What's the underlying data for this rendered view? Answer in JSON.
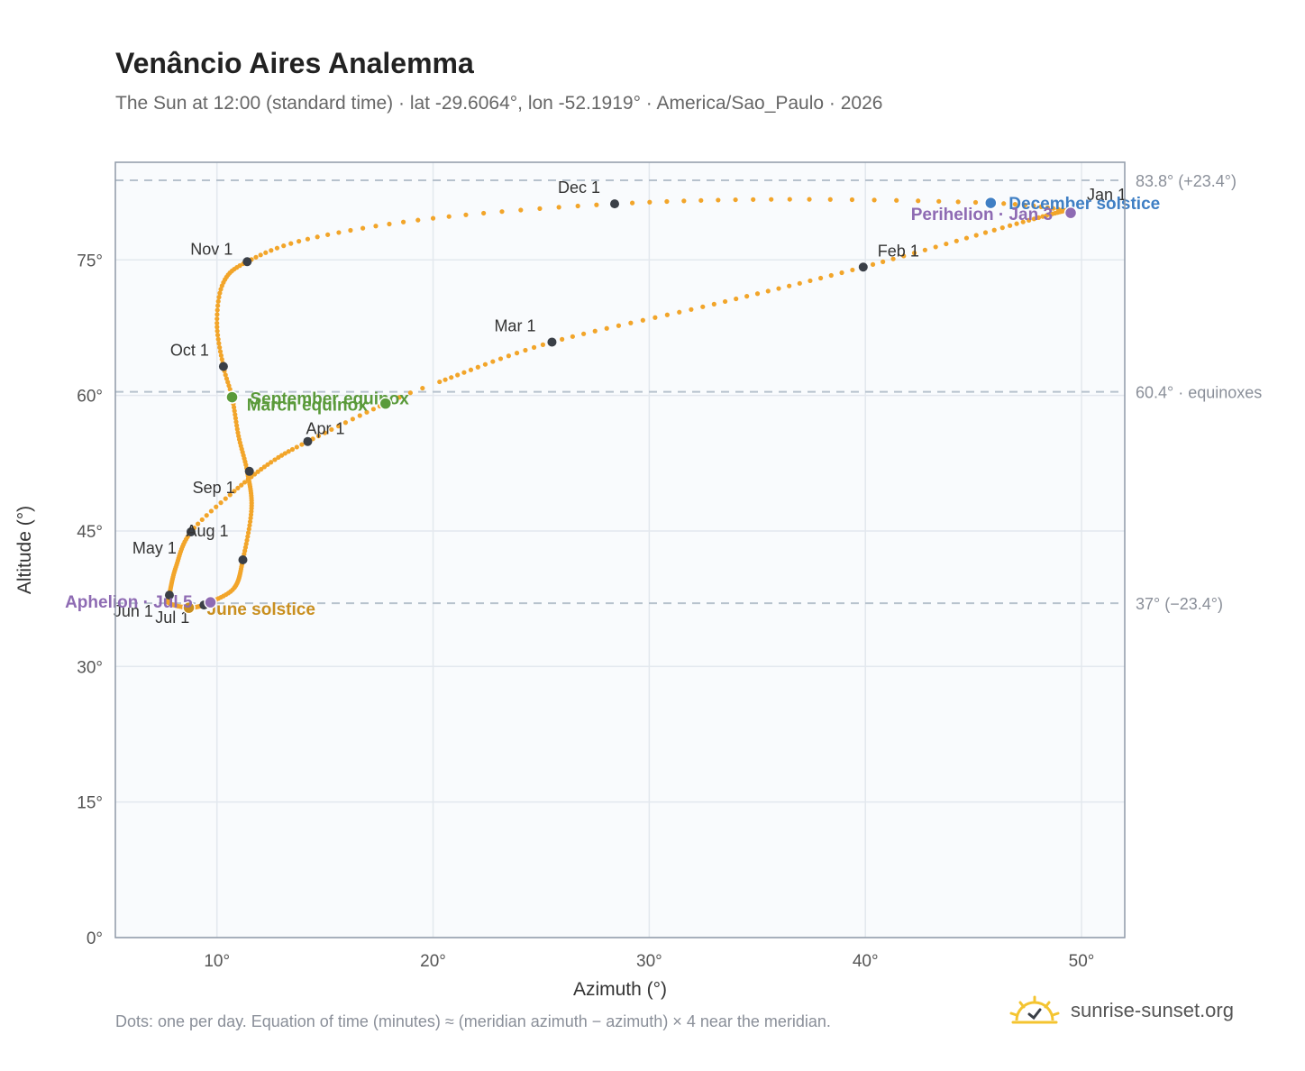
{
  "header": {
    "title": "Venâncio Aires Analemma",
    "subtitle": "The Sun at 12:00 (standard time) · lat -29.6064°, lon -52.1919° · America/Sao_Paulo · 2026"
  },
  "footer": {
    "note": "Dots: one per day. Equation of time (minutes) ≈ (meridian azimuth − azimuth) × 4 near the meridian.",
    "brand": "sunrise-sunset.org"
  },
  "colors": {
    "curve": "#f2a52a",
    "month_marker": "#3a3f47",
    "equinox": "#5a9a3a",
    "june_solstice": "#c98f1f",
    "december_solstice": "#3f7fc4",
    "apsis": "#8e6bb3",
    "plot_bg": "#f9fbfd",
    "grid": "#e3e8ee",
    "reference": "#b7c2cd"
  },
  "chart_data": {
    "type": "scatter",
    "xlabel": "Azimuth (°)",
    "ylabel": "Altitude (°)",
    "xlim": [
      5.3,
      52
    ],
    "ylim": [
      0,
      85.8
    ],
    "x_ticks": [
      10,
      20,
      30,
      40,
      50
    ],
    "x_tick_labels": [
      "10°",
      "20°",
      "30°",
      "40°",
      "50°"
    ],
    "y_ticks": [
      0,
      15,
      30,
      45,
      60,
      75
    ],
    "y_tick_labels": [
      "0°",
      "15°",
      "30°",
      "45°",
      "60°",
      "75°"
    ],
    "grid": true,
    "reference_lines": [
      {
        "y": 83.8,
        "label": "83.8° (+23.4°)"
      },
      {
        "y": 60.4,
        "label": "60.4° · equinoxes"
      },
      {
        "y": 37.0,
        "label": "37° (−23.4°)"
      }
    ],
    "analemma": [
      {
        "day": 1,
        "x": 49.3,
        "y": 80.5
      },
      {
        "day": 16,
        "x": 47.0,
        "y": 79.0
      },
      {
        "day": 32,
        "x": 39.9,
        "y": 74.2
      },
      {
        "day": 46,
        "x": 33.0,
        "y": 70.1
      },
      {
        "day": 60,
        "x": 25.5,
        "y": 65.9
      },
      {
        "day": 75,
        "x": 20.3,
        "y": 61.5
      },
      {
        "day": 79,
        "x": 17.8,
        "y": 59.1
      },
      {
        "day": 91,
        "x": 14.2,
        "y": 54.9
      },
      {
        "day": 100,
        "x": 12.5,
        "y": 52.6
      },
      {
        "day": 111,
        "x": 10.8,
        "y": 49.4
      },
      {
        "day": 121,
        "x": 8.8,
        "y": 44.9
      },
      {
        "day": 136,
        "x": 8.1,
        "y": 41.0
      },
      {
        "day": 152,
        "x": 7.8,
        "y": 37.9
      },
      {
        "day": 160,
        "x": 7.8,
        "y": 37.0
      },
      {
        "day": 172,
        "x": 8.7,
        "y": 36.5
      },
      {
        "day": 182,
        "x": 9.4,
        "y": 36.8
      },
      {
        "day": 186,
        "x": 9.7,
        "y": 37.1
      },
      {
        "day": 197,
        "x": 10.8,
        "y": 38.7
      },
      {
        "day": 213,
        "x": 11.2,
        "y": 41.8
      },
      {
        "day": 228,
        "x": 11.6,
        "y": 47.5
      },
      {
        "day": 244,
        "x": 11.4,
        "y": 51.6
      },
      {
        "day": 255,
        "x": 11.0,
        "y": 55.5
      },
      {
        "day": 266,
        "x": 10.7,
        "y": 59.8
      },
      {
        "day": 274,
        "x": 10.3,
        "y": 63.2
      },
      {
        "day": 285,
        "x": 10.0,
        "y": 68.0
      },
      {
        "day": 295,
        "x": 10.3,
        "y": 72.5
      },
      {
        "day": 305,
        "x": 11.4,
        "y": 74.8
      },
      {
        "day": 315,
        "x": 14.2,
        "y": 77.3
      },
      {
        "day": 325,
        "x": 20.0,
        "y": 79.6
      },
      {
        "day": 335,
        "x": 28.4,
        "y": 81.2
      },
      {
        "day": 345,
        "x": 36.5,
        "y": 81.7
      },
      {
        "day": 355,
        "x": 45.8,
        "y": 81.3
      },
      {
        "day": 365,
        "x": 49.3,
        "y": 80.5
      }
    ],
    "month_markers": [
      {
        "label": "Jan 1",
        "x": 49.5,
        "y": 80.2
      },
      {
        "label": "Feb 1",
        "x": 39.9,
        "y": 74.2
      },
      {
        "label": "Mar 1",
        "x": 25.5,
        "y": 65.9
      },
      {
        "label": "Apr 1",
        "x": 14.2,
        "y": 54.9
      },
      {
        "label": "May 1",
        "x": 8.8,
        "y": 44.9
      },
      {
        "label": "Jun 1",
        "x": 7.8,
        "y": 37.9
      },
      {
        "label": "Jul 1",
        "x": 9.4,
        "y": 36.8
      },
      {
        "label": "Aug 1",
        "x": 11.2,
        "y": 41.8
      },
      {
        "label": "Sep 1",
        "x": 11.5,
        "y": 51.6
      },
      {
        "label": "Oct 1",
        "x": 10.3,
        "y": 63.2
      },
      {
        "label": "Nov 1",
        "x": 11.4,
        "y": 74.8
      },
      {
        "label": "Dec 1",
        "x": 28.4,
        "y": 81.2
      }
    ],
    "events": [
      {
        "label": "December solstice",
        "x": 45.8,
        "y": 81.3,
        "kind": "december_solstice"
      },
      {
        "label": "Perihelion · Jan 3",
        "x": 49.5,
        "y": 80.2,
        "kind": "apsis"
      },
      {
        "label": "September equinox",
        "x": 10.7,
        "y": 59.8,
        "kind": "equinox"
      },
      {
        "label": "March equinox",
        "x": 17.8,
        "y": 59.1,
        "kind": "equinox"
      },
      {
        "label": "June solstice",
        "x": 8.7,
        "y": 36.5,
        "kind": "june_solstice"
      },
      {
        "label": "Aphelion · Jul 5",
        "x": 9.7,
        "y": 37.1,
        "kind": "apsis"
      }
    ]
  }
}
